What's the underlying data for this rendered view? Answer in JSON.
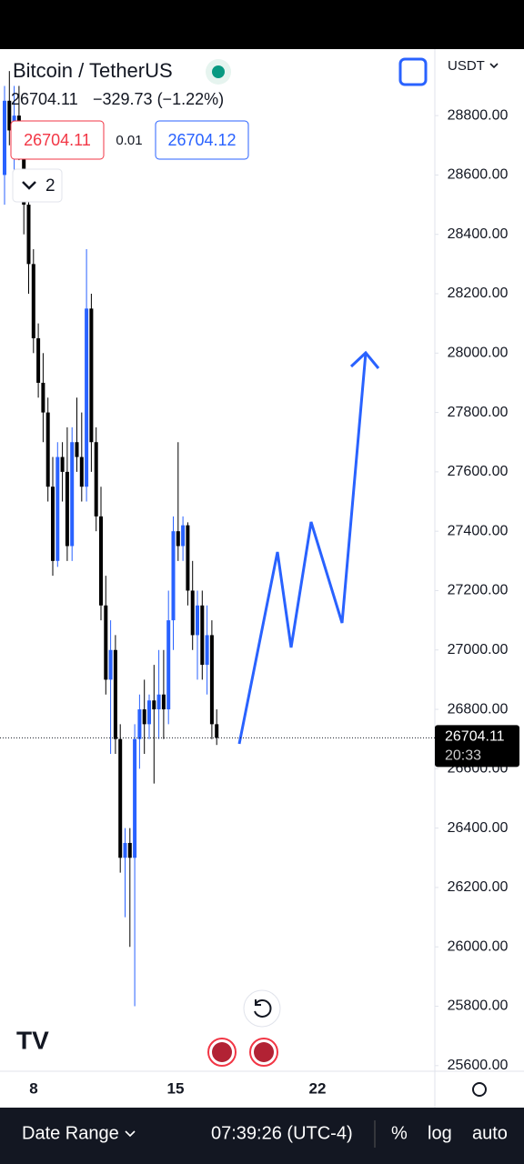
{
  "header": {
    "symbol": "Bitcoin / TetherUS",
    "last": "26704.11",
    "change": "−329.73 (−1.22%)"
  },
  "order": {
    "sell": "26704.11",
    "spread": "0.01",
    "buy": "26704.12"
  },
  "indicators_count": "2",
  "currency": "USDT",
  "chart_data": {
    "type": "candlestick",
    "ohlc": [
      [
        28600,
        28900,
        28500,
        28850
      ],
      [
        28850,
        28950,
        28700,
        28750
      ],
      [
        28750,
        28900,
        28600,
        28800
      ],
      [
        28800,
        28900,
        28650,
        28700
      ],
      [
        28700,
        28750,
        28400,
        28500
      ],
      [
        28500,
        28600,
        28200,
        28300
      ],
      [
        28300,
        28350,
        28000,
        28050
      ],
      [
        28050,
        28100,
        27850,
        27900
      ],
      [
        27900,
        28000,
        27700,
        27800
      ],
      [
        27800,
        27850,
        27500,
        27550
      ],
      [
        27550,
        27650,
        27250,
        27300
      ],
      [
        27300,
        27700,
        27280,
        27650
      ],
      [
        27650,
        27700,
        27500,
        27600
      ],
      [
        27600,
        27750,
        27300,
        27350
      ],
      [
        27350,
        27750,
        27300,
        27700
      ],
      [
        27700,
        27850,
        27600,
        27650
      ],
      [
        27650,
        27800,
        27500,
        27550
      ],
      [
        27550,
        28350,
        27500,
        28150
      ],
      [
        28150,
        28200,
        27600,
        27700
      ],
      [
        27700,
        27750,
        27400,
        27450
      ],
      [
        27450,
        27550,
        27100,
        27150
      ],
      [
        27150,
        27250,
        26850,
        26900
      ],
      [
        26900,
        27100,
        26650,
        27000
      ],
      [
        27000,
        27050,
        26650,
        26700
      ],
      [
        26700,
        26750,
        26250,
        26300
      ],
      [
        26300,
        26400,
        26100,
        26350
      ],
      [
        26350,
        26400,
        26000,
        26300
      ],
      [
        26300,
        26750,
        25800,
        26700
      ],
      [
        26700,
        26850,
        26600,
        26800
      ],
      [
        26800,
        26900,
        26650,
        26750
      ],
      [
        26750,
        26850,
        26700,
        26830
      ],
      [
        26830,
        26950,
        26550,
        26800
      ],
      [
        26800,
        27000,
        26700,
        26850
      ],
      [
        26850,
        27000,
        26700,
        26800
      ],
      [
        26800,
        27200,
        26750,
        27100
      ],
      [
        27100,
        27450,
        27000,
        27400
      ],
      [
        27400,
        27700,
        27300,
        27350
      ],
      [
        27350,
        27450,
        27300,
        27420
      ],
      [
        27420,
        27430,
        27150,
        27200
      ],
      [
        27200,
        27300,
        27000,
        27050
      ],
      [
        27050,
        27200,
        26900,
        27150
      ],
      [
        27150,
        27200,
        26900,
        26950
      ],
      [
        26950,
        27150,
        26850,
        27050
      ],
      [
        27050,
        27100,
        26700,
        26750
      ],
      [
        26750,
        26800,
        26680,
        26704.11
      ]
    ],
    "up_color": "#2962ff",
    "down_color": "#000000",
    "ylim": [
      25581,
      29024
    ],
    "yticks": [
      {
        "value": 28800,
        "label": "28800.00"
      },
      {
        "value": 28600,
        "label": "28600.00"
      },
      {
        "value": 28400,
        "label": "28400.00"
      },
      {
        "value": 28200,
        "label": "28200.00"
      },
      {
        "value": 28000,
        "label": "28000.00"
      },
      {
        "value": 27800,
        "label": "27800.00"
      },
      {
        "value": 27600,
        "label": "27600.00"
      },
      {
        "value": 27400,
        "label": "27400.00"
      },
      {
        "value": 27200,
        "label": "27200.00"
      },
      {
        "value": 27000,
        "label": "27000.00"
      },
      {
        "value": 26800,
        "label": "26800.00"
      },
      {
        "value": 26600,
        "label": "26600.00"
      },
      {
        "value": 26400,
        "label": "26400.00"
      },
      {
        "value": 26200,
        "label": "26200.00"
      },
      {
        "value": 26000,
        "label": "26000.00"
      },
      {
        "value": 25800,
        "label": "25800.00"
      },
      {
        "value": 25600,
        "label": "25600.00"
      }
    ],
    "last_price": 26704.11,
    "countdown": "20:33"
  },
  "time_axis": [
    "8",
    "15",
    "22"
  ],
  "footer": {
    "range": "Date Range",
    "time": "07:39:26 (UTC-4)",
    "percent": "%",
    "log": "log",
    "auto": "auto"
  }
}
